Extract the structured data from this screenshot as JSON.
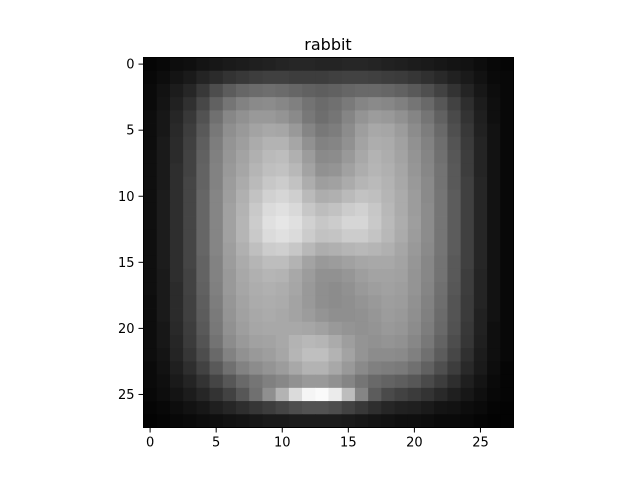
{
  "chart_data": {
    "type": "heatmap",
    "title": "rabbit",
    "colormap": "gray",
    "rows": 28,
    "cols": 28,
    "xticks": [
      0,
      5,
      10,
      15,
      20,
      25
    ],
    "yticks": [
      0,
      5,
      10,
      15,
      20,
      25
    ],
    "xlim": [
      -0.5,
      27.5
    ],
    "ylim": [
      27.5,
      -0.5
    ],
    "values": [
      [
        0.02,
        0.03,
        0.05,
        0.06,
        0.08,
        0.09,
        0.1,
        0.11,
        0.12,
        0.13,
        0.14,
        0.15,
        0.15,
        0.14,
        0.14,
        0.15,
        0.15,
        0.14,
        0.13,
        0.12,
        0.11,
        0.1,
        0.09,
        0.08,
        0.07,
        0.05,
        0.03,
        0.02
      ],
      [
        0.03,
        0.05,
        0.08,
        0.1,
        0.14,
        0.17,
        0.2,
        0.22,
        0.24,
        0.25,
        0.25,
        0.24,
        0.24,
        0.24,
        0.25,
        0.26,
        0.26,
        0.25,
        0.24,
        0.23,
        0.21,
        0.19,
        0.16,
        0.13,
        0.1,
        0.07,
        0.04,
        0.03
      ],
      [
        0.04,
        0.07,
        0.11,
        0.15,
        0.22,
        0.3,
        0.36,
        0.4,
        0.42,
        0.43,
        0.42,
        0.4,
        0.38,
        0.37,
        0.38,
        0.4,
        0.41,
        0.41,
        0.4,
        0.38,
        0.35,
        0.31,
        0.26,
        0.2,
        0.14,
        0.09,
        0.05,
        0.03
      ],
      [
        0.04,
        0.08,
        0.13,
        0.19,
        0.28,
        0.38,
        0.46,
        0.51,
        0.54,
        0.55,
        0.53,
        0.5,
        0.45,
        0.42,
        0.44,
        0.48,
        0.52,
        0.54,
        0.53,
        0.5,
        0.46,
        0.41,
        0.34,
        0.26,
        0.18,
        0.11,
        0.06,
        0.03
      ],
      [
        0.05,
        0.09,
        0.15,
        0.22,
        0.32,
        0.44,
        0.53,
        0.57,
        0.6,
        0.6,
        0.58,
        0.54,
        0.47,
        0.43,
        0.46,
        0.52,
        0.58,
        0.61,
        0.6,
        0.57,
        0.52,
        0.46,
        0.38,
        0.29,
        0.2,
        0.12,
        0.06,
        0.03
      ],
      [
        0.05,
        0.09,
        0.16,
        0.24,
        0.35,
        0.47,
        0.56,
        0.6,
        0.64,
        0.66,
        0.65,
        0.6,
        0.52,
        0.47,
        0.49,
        0.55,
        0.62,
        0.66,
        0.65,
        0.61,
        0.55,
        0.49,
        0.41,
        0.31,
        0.22,
        0.13,
        0.07,
        0.03
      ],
      [
        0.05,
        0.1,
        0.17,
        0.25,
        0.37,
        0.49,
        0.58,
        0.62,
        0.67,
        0.7,
        0.7,
        0.65,
        0.57,
        0.51,
        0.52,
        0.57,
        0.64,
        0.68,
        0.67,
        0.63,
        0.57,
        0.51,
        0.43,
        0.33,
        0.23,
        0.14,
        0.07,
        0.03
      ],
      [
        0.06,
        0.1,
        0.17,
        0.26,
        0.38,
        0.5,
        0.59,
        0.64,
        0.69,
        0.73,
        0.74,
        0.69,
        0.61,
        0.54,
        0.55,
        0.6,
        0.66,
        0.7,
        0.68,
        0.64,
        0.58,
        0.52,
        0.44,
        0.34,
        0.24,
        0.14,
        0.07,
        0.03
      ],
      [
        0.06,
        0.1,
        0.18,
        0.26,
        0.39,
        0.51,
        0.6,
        0.65,
        0.71,
        0.75,
        0.76,
        0.72,
        0.64,
        0.57,
        0.58,
        0.63,
        0.68,
        0.71,
        0.69,
        0.65,
        0.59,
        0.53,
        0.45,
        0.35,
        0.24,
        0.14,
        0.07,
        0.03
      ],
      [
        0.06,
        0.1,
        0.18,
        0.27,
        0.39,
        0.51,
        0.61,
        0.67,
        0.73,
        0.78,
        0.8,
        0.76,
        0.68,
        0.62,
        0.63,
        0.67,
        0.71,
        0.73,
        0.7,
        0.66,
        0.6,
        0.54,
        0.45,
        0.35,
        0.25,
        0.15,
        0.07,
        0.03
      ],
      [
        0.06,
        0.11,
        0.18,
        0.27,
        0.4,
        0.52,
        0.62,
        0.69,
        0.76,
        0.82,
        0.84,
        0.81,
        0.73,
        0.68,
        0.69,
        0.73,
        0.76,
        0.75,
        0.71,
        0.67,
        0.61,
        0.54,
        0.46,
        0.36,
        0.25,
        0.15,
        0.07,
        0.03
      ],
      [
        0.06,
        0.11,
        0.18,
        0.27,
        0.4,
        0.52,
        0.63,
        0.7,
        0.79,
        0.86,
        0.88,
        0.85,
        0.78,
        0.74,
        0.76,
        0.8,
        0.82,
        0.78,
        0.72,
        0.67,
        0.61,
        0.55,
        0.46,
        0.36,
        0.25,
        0.15,
        0.07,
        0.03
      ],
      [
        0.06,
        0.11,
        0.18,
        0.27,
        0.4,
        0.52,
        0.63,
        0.71,
        0.8,
        0.88,
        0.9,
        0.88,
        0.82,
        0.78,
        0.8,
        0.84,
        0.84,
        0.79,
        0.73,
        0.68,
        0.62,
        0.55,
        0.46,
        0.36,
        0.25,
        0.15,
        0.07,
        0.03
      ],
      [
        0.06,
        0.11,
        0.18,
        0.27,
        0.4,
        0.52,
        0.63,
        0.71,
        0.79,
        0.86,
        0.88,
        0.86,
        0.8,
        0.76,
        0.77,
        0.8,
        0.8,
        0.77,
        0.72,
        0.67,
        0.61,
        0.55,
        0.46,
        0.36,
        0.25,
        0.15,
        0.07,
        0.03
      ],
      [
        0.06,
        0.11,
        0.18,
        0.27,
        0.4,
        0.52,
        0.62,
        0.69,
        0.75,
        0.8,
        0.81,
        0.78,
        0.72,
        0.68,
        0.69,
        0.71,
        0.72,
        0.71,
        0.69,
        0.65,
        0.6,
        0.54,
        0.46,
        0.36,
        0.25,
        0.15,
        0.07,
        0.03
      ],
      [
        0.06,
        0.11,
        0.18,
        0.27,
        0.39,
        0.51,
        0.61,
        0.67,
        0.71,
        0.74,
        0.74,
        0.7,
        0.64,
        0.6,
        0.61,
        0.63,
        0.65,
        0.66,
        0.66,
        0.64,
        0.59,
        0.53,
        0.45,
        0.35,
        0.25,
        0.15,
        0.07,
        0.03
      ],
      [
        0.06,
        0.1,
        0.18,
        0.26,
        0.39,
        0.51,
        0.6,
        0.66,
        0.69,
        0.71,
        0.7,
        0.66,
        0.61,
        0.57,
        0.57,
        0.59,
        0.62,
        0.64,
        0.64,
        0.63,
        0.58,
        0.53,
        0.45,
        0.35,
        0.24,
        0.14,
        0.07,
        0.03
      ],
      [
        0.06,
        0.1,
        0.17,
        0.26,
        0.38,
        0.5,
        0.6,
        0.65,
        0.68,
        0.69,
        0.68,
        0.65,
        0.6,
        0.56,
        0.55,
        0.57,
        0.6,
        0.62,
        0.63,
        0.62,
        0.58,
        0.52,
        0.44,
        0.34,
        0.24,
        0.14,
        0.07,
        0.03
      ],
      [
        0.05,
        0.1,
        0.17,
        0.25,
        0.37,
        0.49,
        0.59,
        0.64,
        0.67,
        0.68,
        0.67,
        0.64,
        0.6,
        0.56,
        0.55,
        0.56,
        0.58,
        0.6,
        0.62,
        0.61,
        0.57,
        0.51,
        0.43,
        0.33,
        0.23,
        0.14,
        0.07,
        0.03
      ],
      [
        0.05,
        0.1,
        0.17,
        0.25,
        0.36,
        0.48,
        0.58,
        0.63,
        0.66,
        0.67,
        0.66,
        0.64,
        0.61,
        0.58,
        0.56,
        0.56,
        0.57,
        0.59,
        0.61,
        0.6,
        0.56,
        0.5,
        0.42,
        0.33,
        0.23,
        0.13,
        0.07,
        0.03
      ],
      [
        0.05,
        0.09,
        0.16,
        0.24,
        0.35,
        0.47,
        0.57,
        0.62,
        0.65,
        0.66,
        0.66,
        0.66,
        0.65,
        0.63,
        0.6,
        0.58,
        0.57,
        0.58,
        0.6,
        0.59,
        0.55,
        0.49,
        0.41,
        0.32,
        0.22,
        0.13,
        0.06,
        0.03
      ],
      [
        0.05,
        0.09,
        0.15,
        0.23,
        0.33,
        0.45,
        0.55,
        0.6,
        0.63,
        0.64,
        0.66,
        0.7,
        0.72,
        0.71,
        0.67,
        0.62,
        0.58,
        0.57,
        0.58,
        0.57,
        0.53,
        0.47,
        0.39,
        0.3,
        0.21,
        0.12,
        0.06,
        0.03
      ],
      [
        0.05,
        0.08,
        0.14,
        0.21,
        0.3,
        0.41,
        0.51,
        0.57,
        0.6,
        0.62,
        0.65,
        0.71,
        0.75,
        0.75,
        0.7,
        0.64,
        0.58,
        0.55,
        0.55,
        0.54,
        0.5,
        0.44,
        0.36,
        0.28,
        0.19,
        0.11,
        0.06,
        0.03
      ],
      [
        0.04,
        0.07,
        0.12,
        0.18,
        0.26,
        0.35,
        0.44,
        0.51,
        0.55,
        0.58,
        0.61,
        0.66,
        0.7,
        0.7,
        0.66,
        0.6,
        0.54,
        0.5,
        0.49,
        0.48,
        0.44,
        0.38,
        0.31,
        0.24,
        0.16,
        0.1,
        0.05,
        0.02
      ],
      [
        0.04,
        0.06,
        0.1,
        0.14,
        0.2,
        0.27,
        0.34,
        0.41,
        0.46,
        0.5,
        0.53,
        0.57,
        0.6,
        0.6,
        0.57,
        0.52,
        0.46,
        0.41,
        0.39,
        0.37,
        0.34,
        0.29,
        0.24,
        0.18,
        0.12,
        0.08,
        0.04,
        0.02
      ],
      [
        0.03,
        0.05,
        0.08,
        0.11,
        0.15,
        0.2,
        0.26,
        0.34,
        0.44,
        0.56,
        0.7,
        0.86,
        0.96,
        0.98,
        0.92,
        0.74,
        0.52,
        0.36,
        0.29,
        0.26,
        0.23,
        0.2,
        0.16,
        0.12,
        0.09,
        0.06,
        0.03,
        0.02
      ],
      [
        0.02,
        0.03,
        0.05,
        0.07,
        0.09,
        0.12,
        0.15,
        0.18,
        0.21,
        0.24,
        0.27,
        0.3,
        0.32,
        0.32,
        0.3,
        0.26,
        0.22,
        0.18,
        0.15,
        0.13,
        0.12,
        0.1,
        0.08,
        0.07,
        0.05,
        0.04,
        0.02,
        0.01
      ],
      [
        0.01,
        0.02,
        0.03,
        0.04,
        0.05,
        0.06,
        0.07,
        0.08,
        0.09,
        0.1,
        0.1,
        0.11,
        0.11,
        0.11,
        0.11,
        0.1,
        0.09,
        0.08,
        0.07,
        0.06,
        0.06,
        0.05,
        0.04,
        0.04,
        0.03,
        0.02,
        0.01,
        0.01
      ]
    ]
  }
}
